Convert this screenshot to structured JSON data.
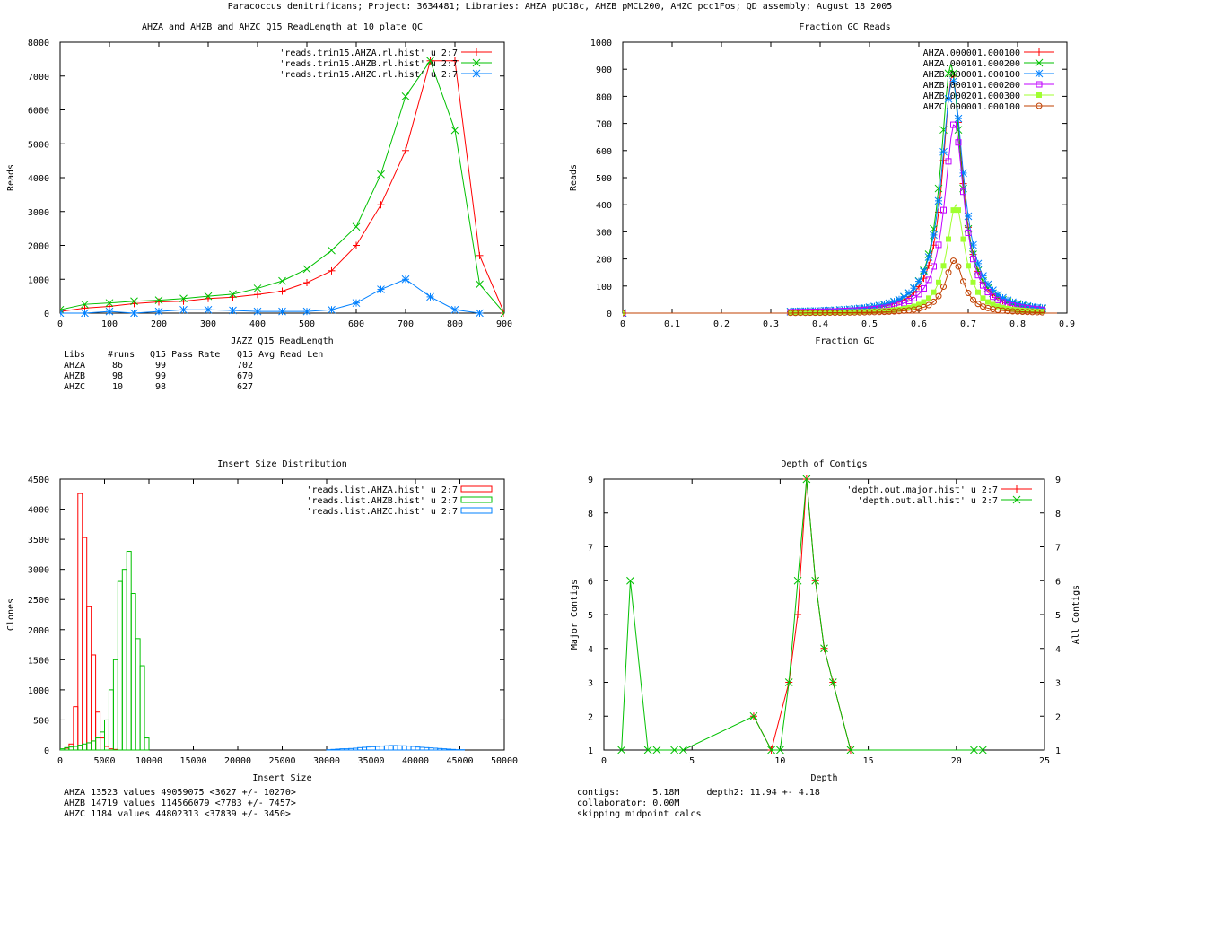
{
  "header": {
    "title": "Paracoccus denitrificans; Project: 3634481; Libraries: AHZA pUC18c, AHZB pMCL200, AHZC pcc1Fos; QD assembly; August 18 2005"
  },
  "chart_data": [
    {
      "id": "readlength",
      "type": "line",
      "title": "AHZA and AHZB and AHZC Q15 ReadLength at 10 plate QC",
      "xlabel": "JAZZ Q15 ReadLength",
      "ylabel": "Reads",
      "xlim": [
        0,
        900
      ],
      "ylim": [
        0,
        8000
      ],
      "xticks": [
        0,
        100,
        200,
        300,
        400,
        500,
        600,
        700,
        800,
        900
      ],
      "yticks": [
        0,
        1000,
        2000,
        3000,
        4000,
        5000,
        6000,
        7000,
        8000
      ],
      "legend_position": "top-right",
      "series": [
        {
          "name": "'reads.trim15.AHZA.rl.hist' u 2:7",
          "color": "#ff0000",
          "marker": "plus",
          "x": [
            0,
            50,
            100,
            150,
            200,
            250,
            300,
            350,
            400,
            450,
            500,
            550,
            600,
            650,
            700,
            750,
            800,
            850,
            900
          ],
          "y": [
            50,
            150,
            200,
            280,
            330,
            350,
            430,
            470,
            550,
            650,
            900,
            1250,
            2000,
            3200,
            4800,
            7450,
            7450,
            1700,
            0
          ]
        },
        {
          "name": "'reads.trim15.AHZB.rl.hist' u 2:7",
          "color": "#00c000",
          "marker": "cross",
          "x": [
            0,
            50,
            100,
            150,
            200,
            250,
            300,
            350,
            400,
            450,
            500,
            550,
            600,
            650,
            700,
            750,
            800,
            850,
            900
          ],
          "y": [
            100,
            260,
            300,
            350,
            380,
            430,
            500,
            560,
            730,
            950,
            1300,
            1850,
            2550,
            4100,
            6400,
            7450,
            5400,
            850,
            0
          ]
        },
        {
          "name": "'reads.trim15.AHZC.rl.hist' u 2:7",
          "color": "#0080ff",
          "marker": "star",
          "x": [
            0,
            50,
            100,
            150,
            200,
            250,
            300,
            350,
            400,
            450,
            500,
            550,
            600,
            650,
            700,
            750,
            800,
            850
          ],
          "y": [
            0,
            0,
            50,
            0,
            50,
            100,
            100,
            80,
            50,
            50,
            50,
            100,
            300,
            700,
            1000,
            480,
            100,
            0
          ]
        }
      ],
      "stats_table": {
        "header": [
          "Libs",
          "#runs",
          "Q15 Pass Rate",
          "Q15 Avg Read Len"
        ],
        "rows": [
          [
            "AHZA",
            "86",
            "99",
            "702"
          ],
          [
            "AHZB",
            "98",
            "99",
            "670"
          ],
          [
            "AHZC",
            "10",
            "98",
            "627"
          ]
        ]
      }
    },
    {
      "id": "gc",
      "type": "scatter",
      "title": "Fraction GC Reads",
      "xlabel": "Fraction GC",
      "ylabel": "Reads",
      "xlim": [
        0,
        0.9
      ],
      "ylim": [
        0,
        1000
      ],
      "xticks": [
        0,
        0.1,
        0.2,
        0.3,
        0.4,
        0.5,
        0.6,
        0.7,
        0.8,
        0.9
      ],
      "yticks": [
        0,
        100,
        200,
        300,
        400,
        500,
        600,
        700,
        800,
        900,
        1000
      ],
      "legend_position": "top-right",
      "series": [
        {
          "name": "AHZA.000001.000100",
          "color": "#ff0000",
          "marker": "plus",
          "peak": 880,
          "center": 0.668,
          "width": 0.024
        },
        {
          "name": "AHZA.000101.000200",
          "color": "#00c000",
          "marker": "cross",
          "peak": 920,
          "center": 0.665,
          "width": 0.025
        },
        {
          "name": "AHZB.000001.000100",
          "color": "#0080ff",
          "marker": "star",
          "peak": 860,
          "center": 0.668,
          "width": 0.027
        },
        {
          "name": "AHZB.000101.000200",
          "color": "#c000ff",
          "marker": "box",
          "peak": 700,
          "center": 0.672,
          "width": 0.024
        },
        {
          "name": "AHZB.000201.000300",
          "color": "#a0ff30",
          "marker": "filled-box",
          "peak": 400,
          "center": 0.675,
          "width": 0.022
        },
        {
          "name": "AHZC.000001.000100",
          "color": "#c04000",
          "marker": "circle",
          "peak": 195,
          "center": 0.672,
          "width": 0.022
        }
      ]
    },
    {
      "id": "insert",
      "type": "bar",
      "title": "Insert Size Distribution",
      "xlabel": "Insert Size",
      "ylabel": "Clones",
      "xlim": [
        0,
        50000
      ],
      "ylim": [
        0,
        4500
      ],
      "xticks": [
        0,
        5000,
        10000,
        15000,
        20000,
        25000,
        30000,
        35000,
        40000,
        45000,
        50000
      ],
      "yticks": [
        0,
        500,
        1000,
        1500,
        2000,
        2500,
        3000,
        3500,
        4000,
        4500
      ],
      "bin_width": 500,
      "legend_position": "top-right",
      "series": [
        {
          "name": "'reads.list.AHZA.hist' u 2:7",
          "color": "#ff0000",
          "x": [
            500,
            1000,
            1500,
            2000,
            2500,
            3000,
            3500,
            4000,
            4500,
            5000,
            5500,
            6000
          ],
          "y": [
            30,
            100,
            720,
            4260,
            3530,
            2380,
            1580,
            630,
            200,
            60,
            20,
            10
          ]
        },
        {
          "name": "'reads.list.AHZB.hist' u 2:7",
          "color": "#00c000",
          "x": [
            0,
            500,
            1000,
            1500,
            2000,
            2500,
            3000,
            3500,
            4000,
            4500,
            5000,
            5500,
            6000,
            6500,
            7000,
            7500,
            8000,
            8500,
            9000,
            9500
          ],
          "y": [
            20,
            40,
            50,
            60,
            80,
            100,
            120,
            150,
            200,
            300,
            500,
            1000,
            1500,
            2800,
            3000,
            3300,
            2600,
            1850,
            1400,
            200
          ]
        },
        {
          "name": "'reads.list.AHZC.hist' u 2:7",
          "color": "#0080ff",
          "x": [
            30000,
            30500,
            31000,
            31500,
            32000,
            32500,
            33000,
            33500,
            34000,
            34500,
            35000,
            35500,
            36000,
            36500,
            37000,
            37500,
            38000,
            38500,
            39000,
            39500,
            40000,
            40500,
            41000,
            41500,
            42000,
            42500,
            43000,
            43500,
            44000,
            44500,
            45000
          ],
          "y": [
            5,
            10,
            15,
            20,
            20,
            25,
            30,
            40,
            45,
            50,
            55,
            60,
            65,
            70,
            75,
            75,
            70,
            70,
            65,
            60,
            50,
            45,
            40,
            35,
            30,
            25,
            20,
            15,
            10,
            5,
            5
          ]
        }
      ],
      "stats": [
        "AHZA 13523 values 49059075 <3627 +/- 10270>",
        "AHZB 14719 values 114566079 <7783 +/- 7457>",
        "AHZC 1184 values 44802313 <37839 +/- 3450>"
      ]
    },
    {
      "id": "depth",
      "type": "line",
      "title": "Depth of Contigs",
      "xlabel": "Depth",
      "ylabel": "Major Contigs",
      "y2label": "All Contigs",
      "xlim": [
        0,
        25
      ],
      "ylim": [
        1,
        9
      ],
      "xticks": [
        0,
        5,
        10,
        15,
        20,
        25
      ],
      "yticks": [
        1,
        2,
        3,
        4,
        5,
        6,
        7,
        8,
        9
      ],
      "legend_position": "top-right",
      "series": [
        {
          "name": "'depth.out.major.hist' u 2:7",
          "color": "#ff0000",
          "marker": "plus",
          "x": [
            8.5,
            9.5,
            10.5,
            11,
            11.5,
            12,
            12.5,
            13,
            14
          ],
          "y": [
            2,
            1,
            3,
            5,
            9,
            6,
            4,
            3,
            1
          ]
        },
        {
          "name": "'depth.out.all.hist' u 2:7",
          "color": "#00c000",
          "marker": "cross",
          "x": [
            1,
            1.5,
            2.5,
            3,
            4,
            4.5,
            8.5,
            9.5,
            10,
            10.5,
            11,
            11.5,
            12,
            12.5,
            13,
            14,
            21,
            21.5
          ],
          "y": [
            1,
            6,
            1,
            1,
            1,
            1,
            2,
            1,
            1,
            3,
            6,
            9,
            6,
            4,
            3,
            1,
            1,
            1
          ]
        }
      ],
      "stats": [
        "contigs:      5.18M     depth2: 11.94 +- 4.18",
        "collaborator: 0.00M",
        "skipping midpoint calcs"
      ]
    }
  ]
}
